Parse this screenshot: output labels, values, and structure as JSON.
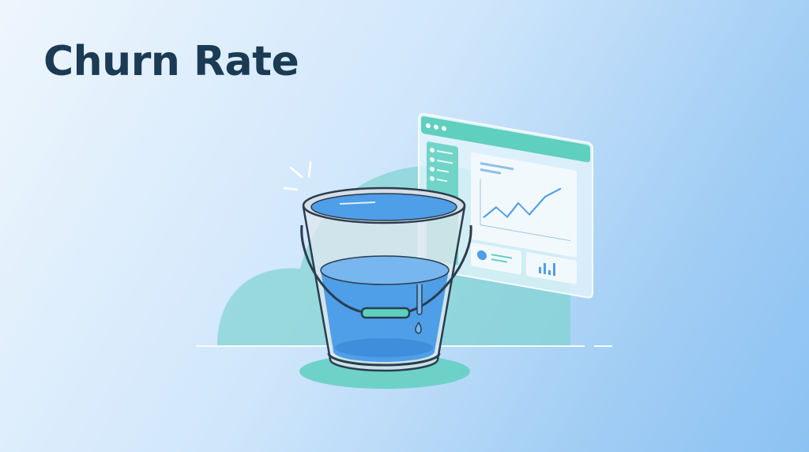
{
  "header": {
    "title": "Churn Rate"
  },
  "illustration": {
    "subject": "leaking-bucket-and-analytics-dashboard",
    "colors": {
      "title": "#1b3a53",
      "accent_teal": "#5fcfbf",
      "water": "#4f9ee8",
      "bucket_outline": "#2b3d4f"
    },
    "icons": [
      "bucket-icon",
      "browser-window-icon",
      "line-chart-icon",
      "pie-chart-icon",
      "bar-chart-icon",
      "water-drop-icon"
    ]
  }
}
